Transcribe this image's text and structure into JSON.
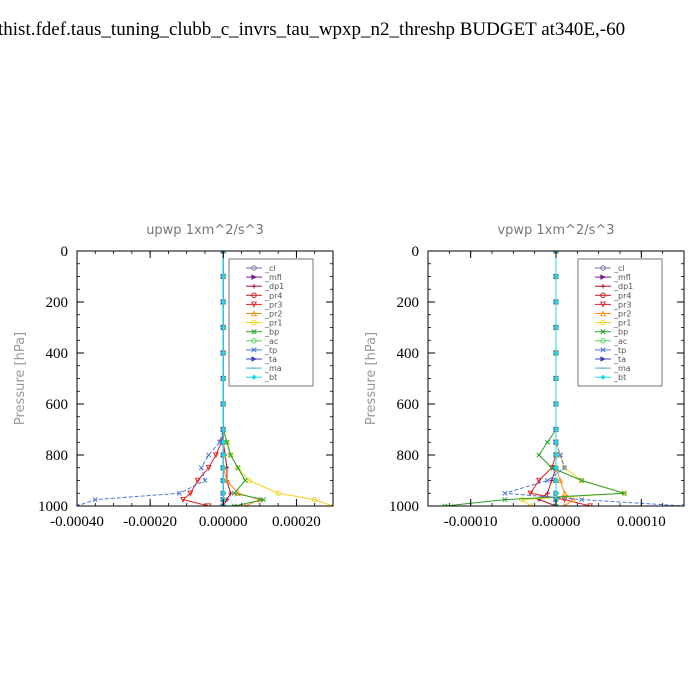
{
  "page": {
    "title": "thist.fdef.taus_tuning_clubb_c_invrs_tau_wpxp_n2_threshp  BUDGET at340E,-60"
  },
  "chart_data": [
    {
      "type": "line",
      "title": "upwp   1xm^2/s^3",
      "ylabel": "Pressure [hPa]",
      "xlabel": "",
      "xlim": [
        -0.0004,
        0.0003
      ],
      "ylim": [
        1000,
        0
      ],
      "xticks": [
        -0.0004,
        -0.0002,
        0.0,
        0.0002
      ],
      "xtick_labels": [
        "-0.00040",
        "-0.00020",
        "0.00000",
        "0.00020"
      ],
      "yticks": [
        0,
        200,
        400,
        600,
        800,
        1000
      ],
      "ytick_labels": [
        "0",
        "200",
        "400",
        "600",
        "800",
        "1000"
      ],
      "legend": "top-right",
      "grid": false,
      "series": [
        {
          "name": "_cl",
          "color": "#7b6aa0",
          "marker": "o",
          "x": [
            0,
            0,
            0,
            0,
            0,
            0,
            0,
            0,
            0,
            0,
            0,
            0,
            0,
            0,
            0
          ],
          "y": [
            0,
            100,
            200,
            300,
            400,
            500,
            600,
            700,
            750,
            800,
            850,
            900,
            950,
            975,
            1000
          ]
        },
        {
          "name": "_mfl",
          "color": "#7a1a8a",
          "marker": "triangle-right",
          "x": [
            0,
            0,
            0,
            0,
            0,
            0,
            0,
            0,
            0,
            0,
            0,
            0,
            0,
            0,
            0
          ],
          "y": [
            0,
            100,
            200,
            300,
            400,
            500,
            600,
            700,
            750,
            800,
            850,
            900,
            950,
            975,
            1000
          ]
        },
        {
          "name": "_dp1",
          "color": "#b01030",
          "marker": "plus",
          "x": [
            0,
            0,
            0,
            0,
            0,
            0,
            0,
            0,
            0,
            5e-06,
            1e-05,
            1e-05,
            2e-05,
            1e-05,
            0
          ],
          "y": [
            0,
            100,
            200,
            300,
            400,
            500,
            600,
            700,
            750,
            800,
            850,
            900,
            950,
            975,
            1000
          ]
        },
        {
          "name": "_pr4",
          "color": "#c41818",
          "marker": "o",
          "x": [
            0,
            0,
            0,
            0,
            0,
            0,
            0,
            0,
            0,
            0,
            0,
            0,
            0,
            0,
            0
          ],
          "y": [
            0,
            100,
            200,
            300,
            400,
            500,
            600,
            700,
            750,
            800,
            850,
            900,
            950,
            975,
            1000
          ]
        },
        {
          "name": "_pr3",
          "color": "#e02020",
          "marker": "triangle-down",
          "x": [
            0,
            0,
            0,
            0,
            0,
            0,
            0,
            0,
            -5e-06,
            -2e-05,
            -4e-05,
            -7e-05,
            -9e-05,
            -0.00011,
            -4e-05
          ],
          "y": [
            0,
            100,
            200,
            300,
            400,
            500,
            600,
            700,
            750,
            800,
            850,
            900,
            950,
            975,
            1000
          ]
        },
        {
          "name": "_pr2",
          "color": "#ff8c1a",
          "marker": "triangle-up",
          "x": [
            0,
            0,
            0,
            0,
            0,
            0,
            0,
            0,
            0,
            0,
            0,
            1e-05,
            4e-05,
            0.0001,
            6e-05
          ],
          "y": [
            0,
            100,
            200,
            300,
            400,
            500,
            600,
            700,
            750,
            800,
            850,
            900,
            950,
            975,
            1000
          ]
        },
        {
          "name": "_pr1",
          "color": "#f2d21a",
          "marker": "o",
          "x": [
            0,
            0,
            0,
            0,
            0,
            0,
            0,
            0,
            1e-05,
            2e-05,
            4e-05,
            7e-05,
            0.00015,
            0.00025,
            0.0003
          ],
          "y": [
            0,
            100,
            200,
            300,
            400,
            500,
            600,
            700,
            750,
            800,
            850,
            900,
            950,
            975,
            1000
          ]
        },
        {
          "name": "_bp",
          "color": "#28a028",
          "marker": "x",
          "x": [
            0,
            0,
            0,
            0,
            0,
            0,
            0,
            0,
            1e-05,
            2e-05,
            4e-05,
            6e-05,
            3e-05,
            0.00011,
            3e-05
          ],
          "y": [
            0,
            100,
            200,
            300,
            400,
            500,
            600,
            700,
            750,
            800,
            850,
            900,
            950,
            975,
            1000
          ]
        },
        {
          "name": "_ac",
          "color": "#60d060",
          "marker": "o",
          "x": [
            0,
            0,
            0,
            0,
            0,
            0,
            0,
            0,
            0,
            0,
            0,
            0,
            0,
            0,
            0
          ],
          "y": [
            0,
            100,
            200,
            300,
            400,
            500,
            600,
            700,
            750,
            800,
            850,
            900,
            950,
            975,
            1000
          ]
        },
        {
          "name": "_tp",
          "color": "#4a78d8",
          "marker": "x",
          "x": [
            0,
            0,
            0,
            0,
            0,
            0,
            0,
            0,
            -1e-05,
            -4e-05,
            -6e-05,
            -5e-05,
            -0.00012,
            -0.00035,
            -0.0004
          ],
          "y": [
            0,
            100,
            200,
            300,
            400,
            500,
            600,
            700,
            750,
            800,
            850,
            900,
            950,
            975,
            1000
          ]
        },
        {
          "name": "_ta",
          "color": "#4040b8",
          "marker": "triangle-right",
          "x": [
            0,
            0,
            0,
            0,
            0,
            0,
            0,
            0,
            0,
            0,
            0,
            0,
            0,
            0,
            0
          ],
          "y": [
            0,
            100,
            200,
            300,
            400,
            500,
            600,
            700,
            750,
            800,
            850,
            900,
            950,
            975,
            1000
          ]
        },
        {
          "name": "_ma",
          "color": "#50aee0",
          "marker": "dash",
          "x": [
            0,
            0,
            0,
            0,
            0,
            0,
            0,
            0,
            0,
            0,
            0,
            0,
            0,
            0,
            0
          ],
          "y": [
            0,
            100,
            200,
            300,
            400,
            500,
            600,
            700,
            750,
            800,
            850,
            900,
            950,
            975,
            1000
          ]
        },
        {
          "name": "_bt",
          "color": "#20d8e8",
          "marker": "diamond",
          "x": [
            0,
            0,
            0,
            0,
            0,
            0,
            0,
            0,
            0,
            0,
            0,
            0,
            0,
            0,
            0
          ],
          "y": [
            0,
            100,
            200,
            300,
            400,
            500,
            600,
            700,
            750,
            800,
            850,
            900,
            950,
            975,
            1000
          ]
        }
      ]
    },
    {
      "type": "line",
      "title": "vpwp   1xm^2/s^3",
      "ylabel": "Pressure [hPa]",
      "xlabel": "",
      "xlim": [
        -0.00015,
        0.00015
      ],
      "ylim": [
        1000,
        0
      ],
      "xticks": [
        -0.0001,
        0.0,
        0.0001
      ],
      "xtick_labels": [
        "-0.00010",
        "0.00000",
        "0.00010"
      ],
      "yticks": [
        0,
        200,
        400,
        600,
        800,
        1000
      ],
      "ytick_labels": [
        "0",
        "200",
        "400",
        "600",
        "800",
        "1000"
      ],
      "legend": "top-right",
      "grid": false,
      "series": [
        {
          "name": "_cl",
          "color": "#7b6aa0",
          "marker": "o",
          "x": [
            0,
            0,
            0,
            0,
            0,
            0,
            0,
            0,
            0,
            0,
            0,
            0,
            0,
            0,
            0
          ],
          "y": [
            0,
            100,
            200,
            300,
            400,
            500,
            600,
            700,
            750,
            800,
            850,
            900,
            950,
            975,
            1000
          ]
        },
        {
          "name": "_mfl",
          "color": "#7a1a8a",
          "marker": "triangle-right",
          "x": [
            0,
            0,
            0,
            0,
            0,
            0,
            0,
            0,
            0,
            0,
            0,
            0,
            0,
            0,
            0
          ],
          "y": [
            0,
            100,
            200,
            300,
            400,
            500,
            600,
            700,
            750,
            800,
            850,
            900,
            950,
            975,
            1000
          ]
        },
        {
          "name": "_dp1",
          "color": "#b01030",
          "marker": "plus",
          "x": [
            0,
            0,
            0,
            0,
            0,
            0,
            0,
            0,
            0,
            0,
            0,
            -5e-06,
            -1e-05,
            -2e-05,
            0
          ],
          "y": [
            0,
            100,
            200,
            300,
            400,
            500,
            600,
            700,
            750,
            800,
            850,
            900,
            950,
            975,
            1000
          ]
        },
        {
          "name": "_pr4",
          "color": "#c41818",
          "marker": "o",
          "x": [
            0,
            0,
            0,
            0,
            0,
            0,
            0,
            0,
            0,
            0,
            0,
            0,
            0,
            0,
            0
          ],
          "y": [
            0,
            100,
            200,
            300,
            400,
            500,
            600,
            700,
            750,
            800,
            850,
            900,
            950,
            975,
            1000
          ]
        },
        {
          "name": "_pr3",
          "color": "#e02020",
          "marker": "triangle-down",
          "x": [
            0,
            0,
            0,
            0,
            0,
            0,
            0,
            0,
            0,
            0,
            -5e-06,
            -2e-05,
            -3e-05,
            1e-05,
            4e-05
          ],
          "y": [
            0,
            100,
            200,
            300,
            400,
            500,
            600,
            700,
            750,
            800,
            850,
            900,
            950,
            975,
            1000
          ]
        },
        {
          "name": "_pr2",
          "color": "#ff8c1a",
          "marker": "triangle-up",
          "x": [
            0,
            0,
            0,
            0,
            0,
            0,
            0,
            0,
            0,
            0,
            0,
            5e-06,
            1e-05,
            2e-05,
            1e-05
          ],
          "y": [
            0,
            100,
            200,
            300,
            400,
            500,
            600,
            700,
            750,
            800,
            850,
            900,
            950,
            975,
            1000
          ]
        },
        {
          "name": "_pr1",
          "color": "#f2d21a",
          "marker": "o",
          "x": [
            0,
            0,
            0,
            0,
            0,
            0,
            0,
            0,
            0,
            5e-06,
            1e-05,
            3e-05,
            8e-05,
            -4e-05,
            -3e-05
          ],
          "y": [
            0,
            100,
            200,
            300,
            400,
            500,
            600,
            700,
            750,
            800,
            850,
            900,
            950,
            975,
            1000
          ]
        },
        {
          "name": "_bp",
          "color": "#28a028",
          "marker": "x",
          "x": [
            0,
            0,
            0,
            0,
            0,
            0,
            0,
            0,
            -1e-05,
            -2e-05,
            -5e-06,
            3e-05,
            8e-05,
            -6e-05,
            -0.00013
          ],
          "y": [
            0,
            100,
            200,
            300,
            400,
            500,
            600,
            700,
            750,
            800,
            850,
            900,
            950,
            975,
            1000
          ]
        },
        {
          "name": "_ac",
          "color": "#60d060",
          "marker": "o",
          "x": [
            0,
            0,
            0,
            0,
            0,
            0,
            0,
            0,
            0,
            0,
            0,
            0,
            0,
            0,
            0
          ],
          "y": [
            0,
            100,
            200,
            300,
            400,
            500,
            600,
            700,
            750,
            800,
            850,
            900,
            950,
            975,
            1000
          ]
        },
        {
          "name": "_tp",
          "color": "#4a78d8",
          "marker": "x",
          "x": [
            0,
            0,
            0,
            0,
            0,
            0,
            0,
            0,
            0,
            5e-06,
            1e-05,
            -1e-05,
            -6e-05,
            3e-05,
            0.00015
          ],
          "y": [
            0,
            100,
            200,
            300,
            400,
            500,
            600,
            700,
            750,
            800,
            850,
            900,
            950,
            975,
            1000
          ]
        },
        {
          "name": "_ta",
          "color": "#4040b8",
          "marker": "triangle-right",
          "x": [
            0,
            0,
            0,
            0,
            0,
            0,
            0,
            0,
            0,
            0,
            0,
            0,
            0,
            0,
            0
          ],
          "y": [
            0,
            100,
            200,
            300,
            400,
            500,
            600,
            700,
            750,
            800,
            850,
            900,
            950,
            975,
            1000
          ]
        },
        {
          "name": "_ma",
          "color": "#50aee0",
          "marker": "dash",
          "x": [
            0,
            0,
            0,
            0,
            0,
            0,
            0,
            0,
            0,
            0,
            0,
            0,
            0,
            0,
            0
          ],
          "y": [
            0,
            100,
            200,
            300,
            400,
            500,
            600,
            700,
            750,
            800,
            850,
            900,
            950,
            975,
            1000
          ]
        },
        {
          "name": "_bt",
          "color": "#20d8e8",
          "marker": "diamond",
          "x": [
            0,
            0,
            0,
            0,
            0,
            0,
            0,
            0,
            0,
            0,
            0,
            0,
            0,
            0,
            0
          ],
          "y": [
            0,
            100,
            200,
            300,
            400,
            500,
            600,
            700,
            750,
            800,
            850,
            900,
            950,
            975,
            1000
          ]
        }
      ]
    }
  ]
}
